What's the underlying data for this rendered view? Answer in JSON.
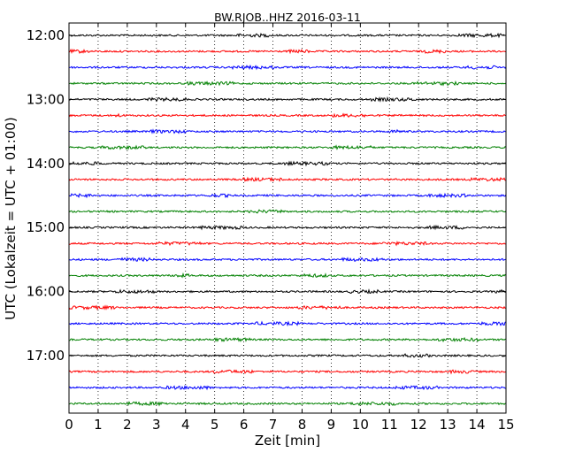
{
  "chart_data": {
    "type": "line",
    "title": "BW.RJOB..HHZ 2016-03-11",
    "xlabel": "Zeit  [min]",
    "ylabel": "UTC (Lokalzeit = UTC + 01:00)",
    "xlim": [
      0,
      15
    ],
    "x_ticks": [
      "0",
      "1",
      "2",
      "3",
      "4",
      "5",
      "6",
      "7",
      "8",
      "9",
      "10",
      "11",
      "12",
      "13",
      "14",
      "15"
    ],
    "y_ticks": [
      "12:00",
      "13:00",
      "14:00",
      "15:00",
      "16:00",
      "17:00"
    ],
    "grid": "vertical dotted",
    "colors": [
      "#000000",
      "#ff0000",
      "#0000ff",
      "#008000"
    ],
    "traces": [
      {
        "start": "12:00",
        "color": "#000000"
      },
      {
        "start": "12:15",
        "color": "#ff0000"
      },
      {
        "start": "12:30",
        "color": "#0000ff"
      },
      {
        "start": "12:45",
        "color": "#008000"
      },
      {
        "start": "13:00",
        "color": "#000000"
      },
      {
        "start": "13:15",
        "color": "#ff0000"
      },
      {
        "start": "13:30",
        "color": "#0000ff"
      },
      {
        "start": "13:45",
        "color": "#008000"
      },
      {
        "start": "14:00",
        "color": "#000000"
      },
      {
        "start": "14:15",
        "color": "#ff0000"
      },
      {
        "start": "14:30",
        "color": "#0000ff"
      },
      {
        "start": "14:45",
        "color": "#008000"
      },
      {
        "start": "15:00",
        "color": "#000000"
      },
      {
        "start": "15:15",
        "color": "#ff0000"
      },
      {
        "start": "15:30",
        "color": "#0000ff"
      },
      {
        "start": "15:45",
        "color": "#008000"
      },
      {
        "start": "16:00",
        "color": "#000000"
      },
      {
        "start": "16:15",
        "color": "#ff0000"
      },
      {
        "start": "16:30",
        "color": "#0000ff"
      },
      {
        "start": "16:45",
        "color": "#008000"
      },
      {
        "start": "17:00",
        "color": "#000000"
      },
      {
        "start": "17:15",
        "color": "#ff0000"
      },
      {
        "start": "17:30",
        "color": "#0000ff"
      },
      {
        "start": "17:45",
        "color": "#008000"
      }
    ]
  }
}
